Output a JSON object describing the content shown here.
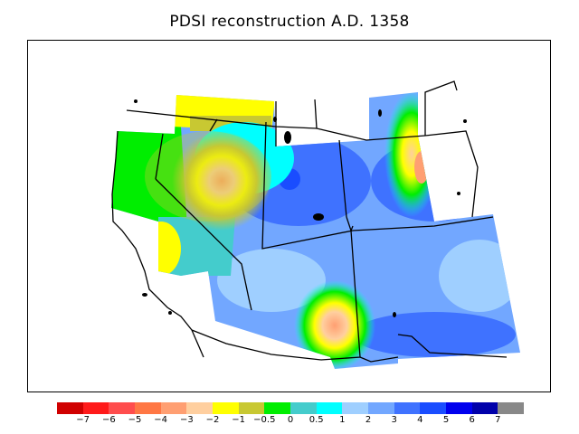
{
  "title": "PDSI reconstruction A.D. 1358",
  "colorbar": {
    "colors": [
      "#d00000",
      "#ff1a1a",
      "#ff4d4d",
      "#ff7744",
      "#ff9f72",
      "#ffcf9f",
      "#ffff00",
      "#c8c832",
      "#00ee00",
      "#44cccc",
      "#00ffff",
      "#9fcfff",
      "#72a7ff",
      "#3f72ff",
      "#1a4dff",
      "#0000ee",
      "#0000aa",
      "#888888"
    ],
    "labels": [
      "−7",
      "−6",
      "−5",
      "−4",
      "−3",
      "−2",
      "−1",
      "−0.5",
      "0",
      "0.5",
      "1",
      "2",
      "3",
      "4",
      "5",
      "6",
      "7"
    ]
  }
}
